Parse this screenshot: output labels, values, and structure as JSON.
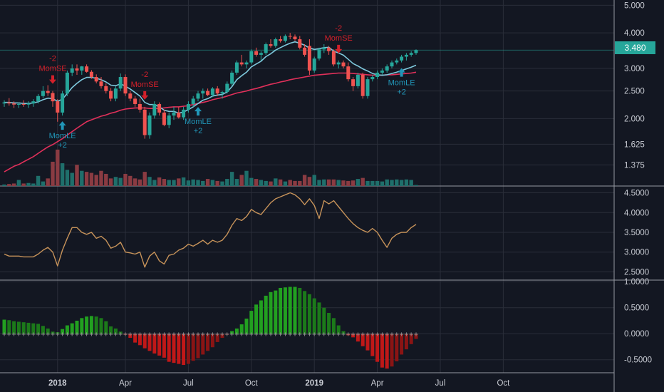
{
  "colors": {
    "background": "#131722",
    "grid": "#2a2e39",
    "candle_up": "#26a69a",
    "candle_down": "#ef5350",
    "vol_up": "#1f6f6b",
    "vol_down": "#8a3b42",
    "ema_fast": "#7ec8dc",
    "ema_slow": "#e0305a",
    "mom_line": "#c7935a",
    "hist_up": "#22a020",
    "hist_down": "#c01818",
    "signal_long": "#2196b8",
    "signal_short": "#d3202a",
    "price_tag_bg": "#26a69a"
  },
  "last_price_label": "3.480",
  "chart_data": [
    {
      "type": "candlestick",
      "scale": "log",
      "y_ticks": [
        "5.000",
        "4.000",
        "3.000",
        "2.500",
        "2.000",
        "1.625",
        "1.375"
      ],
      "y_tick_values": [
        5.0,
        4.0,
        3.0,
        2.5,
        2.0,
        1.625,
        1.375
      ],
      "ylim": [
        1.2,
        5.1
      ],
      "candles": [
        [
          2.26,
          2.32,
          2.2,
          2.28
        ],
        [
          2.28,
          2.36,
          2.22,
          2.26
        ],
        [
          2.26,
          2.3,
          2.18,
          2.24
        ],
        [
          2.24,
          2.28,
          2.18,
          2.25
        ],
        [
          2.25,
          2.32,
          2.2,
          2.24
        ],
        [
          2.24,
          2.3,
          2.18,
          2.26
        ],
        [
          2.26,
          2.34,
          2.2,
          2.3
        ],
        [
          2.3,
          2.44,
          2.26,
          2.4
        ],
        [
          2.4,
          2.6,
          2.36,
          2.5
        ],
        [
          2.5,
          2.62,
          2.4,
          2.46
        ],
        [
          2.46,
          2.5,
          2.2,
          2.3
        ],
        [
          2.3,
          2.34,
          1.95,
          2.1
        ],
        [
          2.1,
          2.5,
          2.05,
          2.45
        ],
        [
          2.45,
          2.95,
          2.4,
          2.9
        ],
        [
          2.9,
          3.1,
          2.82,
          3.0
        ],
        [
          3.0,
          3.1,
          2.85,
          2.95
        ],
        [
          2.95,
          3.06,
          2.85,
          3.05
        ],
        [
          3.05,
          3.1,
          2.9,
          2.92
        ],
        [
          2.92,
          2.96,
          2.76,
          2.8
        ],
        [
          2.8,
          2.86,
          2.66,
          2.7
        ],
        [
          2.7,
          2.8,
          2.55,
          2.6
        ],
        [
          2.6,
          2.66,
          2.45,
          2.5
        ],
        [
          2.5,
          2.56,
          2.3,
          2.35
        ],
        [
          2.35,
          2.6,
          2.3,
          2.55
        ],
        [
          2.55,
          2.88,
          2.5,
          2.8
        ],
        [
          2.8,
          2.86,
          2.4,
          2.45
        ],
        [
          2.45,
          2.5,
          2.3,
          2.35
        ],
        [
          2.35,
          2.4,
          2.2,
          2.25
        ],
        [
          2.25,
          2.35,
          2.1,
          2.15
        ],
        [
          2.15,
          2.2,
          1.7,
          1.75
        ],
        [
          1.75,
          2.1,
          1.7,
          2.05
        ],
        [
          2.05,
          2.3,
          2.0,
          2.25
        ],
        [
          2.25,
          2.28,
          2.05,
          2.1
        ],
        [
          2.1,
          2.15,
          1.88,
          1.9
        ],
        [
          1.9,
          2.1,
          1.85,
          2.05
        ],
        [
          2.05,
          2.2,
          1.98,
          2.1
        ],
        [
          2.1,
          2.2,
          2.0,
          2.02
        ],
        [
          2.02,
          2.2,
          1.98,
          2.15
        ],
        [
          2.15,
          2.3,
          2.1,
          2.25
        ],
        [
          2.25,
          2.4,
          2.2,
          2.35
        ],
        [
          2.35,
          2.5,
          2.3,
          2.45
        ],
        [
          2.45,
          2.55,
          2.35,
          2.5
        ],
        [
          2.5,
          2.55,
          2.4,
          2.42
        ],
        [
          2.42,
          2.58,
          2.38,
          2.55
        ],
        [
          2.55,
          2.6,
          2.4,
          2.45
        ],
        [
          2.45,
          2.5,
          2.35,
          2.48
        ],
        [
          2.48,
          2.7,
          2.45,
          2.65
        ],
        [
          2.65,
          2.95,
          2.6,
          2.9
        ],
        [
          2.9,
          3.2,
          2.85,
          3.15
        ],
        [
          3.15,
          3.35,
          3.05,
          3.1
        ],
        [
          3.1,
          3.2,
          3.0,
          3.15
        ],
        [
          3.15,
          3.5,
          3.1,
          3.45
        ],
        [
          3.45,
          3.55,
          3.3,
          3.35
        ],
        [
          3.35,
          3.45,
          3.2,
          3.4
        ],
        [
          3.4,
          3.7,
          3.35,
          3.65
        ],
        [
          3.65,
          3.8,
          3.55,
          3.6
        ],
        [
          3.6,
          3.85,
          3.55,
          3.8
        ],
        [
          3.8,
          3.9,
          3.7,
          3.75
        ],
        [
          3.75,
          3.95,
          3.7,
          3.9
        ],
        [
          3.9,
          4.0,
          3.8,
          3.88
        ],
        [
          3.88,
          3.95,
          3.75,
          3.8
        ],
        [
          3.8,
          3.9,
          3.5,
          3.55
        ],
        [
          3.55,
          3.65,
          3.3,
          3.35
        ],
        [
          3.6,
          3.8,
          2.85,
          2.95
        ],
        [
          2.95,
          3.3,
          2.9,
          3.25
        ],
        [
          3.25,
          3.55,
          3.2,
          3.5
        ],
        [
          3.5,
          3.65,
          3.4,
          3.55
        ],
        [
          3.55,
          3.6,
          3.35,
          3.45
        ],
        [
          3.45,
          3.5,
          3.05,
          3.1
        ],
        [
          3.1,
          3.2,
          3.0,
          3.15
        ],
        [
          3.15,
          3.2,
          3.0,
          3.05
        ],
        [
          3.05,
          3.15,
          2.7,
          2.75
        ],
        [
          2.75,
          2.8,
          2.5,
          2.6
        ],
        [
          2.6,
          2.9,
          2.55,
          2.85
        ],
        [
          2.85,
          2.9,
          2.35,
          2.4
        ],
        [
          2.4,
          2.8,
          2.35,
          2.75
        ],
        [
          2.75,
          2.85,
          2.7,
          2.8
        ],
        [
          2.8,
          2.95,
          2.75,
          2.9
        ],
        [
          2.9,
          3.0,
          2.85,
          2.95
        ],
        [
          2.95,
          3.1,
          2.9,
          3.05
        ],
        [
          3.05,
          3.2,
          3.0,
          3.15
        ],
        [
          3.15,
          3.25,
          3.1,
          3.2
        ],
        [
          3.2,
          3.35,
          3.15,
          3.3
        ],
        [
          3.3,
          3.4,
          3.2,
          3.35
        ],
        [
          3.35,
          3.45,
          3.3,
          3.4
        ],
        [
          3.4,
          3.5,
          3.35,
          3.48
        ]
      ],
      "volume_max": 100,
      "volume": [
        3,
        4,
        5,
        12,
        5,
        6,
        5,
        20,
        9,
        15,
        48,
        72,
        45,
        32,
        26,
        42,
        30,
        28,
        26,
        22,
        30,
        24,
        15,
        18,
        16,
        24,
        20,
        15,
        13,
        28,
        18,
        12,
        17,
        14,
        12,
        12,
        15,
        17,
        11,
        13,
        12,
        10,
        14,
        12,
        10,
        9,
        14,
        28,
        14,
        22,
        30,
        16,
        14,
        12,
        10,
        9,
        15,
        13,
        9,
        12,
        10,
        10,
        22,
        18,
        22,
        12,
        13,
        13,
        13,
        12,
        11,
        10,
        11,
        14,
        16,
        10,
        10,
        10,
        9,
        13,
        12,
        13,
        12,
        13,
        12,
        2
      ],
      "ema_fast": [
        2.28,
        2.28,
        2.27,
        2.27,
        2.26,
        2.26,
        2.27,
        2.29,
        2.33,
        2.36,
        2.35,
        2.3,
        2.34,
        2.45,
        2.57,
        2.66,
        2.74,
        2.79,
        2.79,
        2.77,
        2.74,
        2.69,
        2.62,
        2.61,
        2.65,
        2.6,
        2.54,
        2.47,
        2.4,
        2.28,
        2.24,
        2.24,
        2.2,
        2.14,
        2.12,
        2.12,
        2.09,
        2.11,
        2.15,
        2.2,
        2.26,
        2.32,
        2.35,
        2.4,
        2.42,
        2.43,
        2.48,
        2.59,
        2.74,
        2.83,
        2.91,
        3.04,
        3.11,
        3.18,
        3.3,
        3.38,
        3.48,
        3.55,
        3.62,
        3.68,
        3.72,
        3.68,
        3.62,
        3.54,
        3.5,
        3.52,
        3.55,
        3.56,
        3.45,
        3.4,
        3.34,
        3.23,
        3.12,
        3.06,
        2.99,
        2.94,
        2.88,
        2.85,
        2.84,
        2.85,
        2.88,
        2.91,
        2.95,
        2.99,
        3.03,
        3.08
      ],
      "ema_slow": [
        1.3,
        1.33,
        1.36,
        1.38,
        1.41,
        1.44,
        1.47,
        1.51,
        1.55,
        1.59,
        1.62,
        1.66,
        1.7,
        1.75,
        1.8,
        1.85,
        1.9,
        1.95,
        1.98,
        2.01,
        2.04,
        2.06,
        2.09,
        2.11,
        2.14,
        2.16,
        2.17,
        2.18,
        2.18,
        2.18,
        2.17,
        2.17,
        2.17,
        2.18,
        2.19,
        2.2,
        2.2,
        2.21,
        2.22,
        2.24,
        2.26,
        2.28,
        2.3,
        2.33,
        2.35,
        2.37,
        2.4,
        2.43,
        2.46,
        2.48,
        2.5,
        2.53,
        2.55,
        2.58,
        2.61,
        2.64,
        2.66,
        2.69,
        2.71,
        2.74,
        2.76,
        2.78,
        2.8,
        2.82,
        2.84,
        2.85,
        2.86,
        2.87,
        2.88,
        2.89,
        2.89,
        2.89,
        2.88,
        2.87,
        2.86,
        2.85,
        2.84,
        2.84,
        2.84,
        2.85,
        2.85,
        2.86,
        2.87,
        2.88,
        2.89,
        2.91
      ],
      "signals": [
        {
          "index": 10,
          "type": "short",
          "text": "-2",
          "name": "MomSE"
        },
        {
          "index": 12,
          "type": "long",
          "text": "+2",
          "name": "MomLE"
        },
        {
          "index": 29,
          "type": "short",
          "text": "-2",
          "name": "MomSE"
        },
        {
          "index": 40,
          "type": "long",
          "text": "+2",
          "name": "MomLE"
        },
        {
          "index": 69,
          "type": "short",
          "text": "-2",
          "name": "MomSE"
        },
        {
          "index": 82,
          "type": "long",
          "text": "+2",
          "name": "MomLE"
        }
      ]
    },
    {
      "type": "line",
      "y_ticks": [
        "4.5000",
        "4.0000",
        "3.5000",
        "3.0000",
        "2.5000"
      ],
      "y_tick_values": [
        4.5,
        4.0,
        3.5,
        3.0,
        2.5
      ],
      "ylim": [
        2.4,
        4.6
      ],
      "values": [
        2.95,
        2.9,
        2.9,
        2.9,
        2.88,
        2.88,
        2.88,
        2.95,
        3.05,
        3.12,
        3.0,
        2.65,
        3.05,
        3.35,
        3.62,
        3.62,
        3.5,
        3.45,
        3.5,
        3.35,
        3.4,
        3.3,
        3.1,
        3.15,
        3.25,
        3.0,
        2.98,
        2.95,
        3.0,
        2.62,
        2.9,
        3.0,
        2.78,
        2.7,
        2.92,
        2.95,
        3.05,
        3.1,
        3.2,
        3.15,
        3.22,
        3.3,
        3.2,
        3.3,
        3.25,
        3.3,
        3.45,
        3.68,
        3.85,
        3.8,
        3.9,
        4.08,
        4.0,
        3.95,
        4.1,
        4.25,
        4.35,
        4.4,
        4.45,
        4.5,
        4.45,
        4.35,
        4.2,
        4.35,
        4.18,
        3.85,
        4.3,
        4.22,
        4.3,
        4.15,
        4.0,
        3.85,
        3.72,
        3.62,
        3.55,
        3.5,
        3.6,
        3.5,
        3.3,
        3.12,
        3.35,
        3.45,
        3.5,
        3.5,
        3.62,
        3.7
      ]
    },
    {
      "type": "histogram",
      "y_ticks": [
        "1.0000",
        "0.5000",
        "0.0000",
        "-0.5000"
      ],
      "y_tick_values": [
        1.0,
        0.5,
        0.0,
        -0.5
      ],
      "ylim": [
        -0.75,
        1.03
      ],
      "values": [
        0.27,
        0.26,
        0.24,
        0.23,
        0.22,
        0.21,
        0.2,
        0.19,
        0.15,
        0.1,
        0.04,
        0.03,
        0.09,
        0.16,
        0.2,
        0.25,
        0.3,
        0.33,
        0.34,
        0.33,
        0.3,
        0.24,
        0.14,
        0.1,
        0.04,
        -0.02,
        -0.08,
        -0.17,
        -0.22,
        -0.28,
        -0.33,
        -0.38,
        -0.42,
        -0.46,
        -0.54,
        -0.56,
        -0.58,
        -0.6,
        -0.58,
        -0.52,
        -0.47,
        -0.4,
        -0.33,
        -0.26,
        -0.16,
        -0.08,
        -0.02,
        0.05,
        0.1,
        0.18,
        0.29,
        0.44,
        0.56,
        0.64,
        0.73,
        0.8,
        0.83,
        0.88,
        0.89,
        0.9,
        0.9,
        0.88,
        0.82,
        0.76,
        0.68,
        0.6,
        0.5,
        0.4,
        0.3,
        0.16,
        0.05,
        -0.03,
        -0.07,
        -0.15,
        -0.24,
        -0.32,
        -0.43,
        -0.54,
        -0.65,
        -0.67,
        -0.63,
        -0.53,
        -0.4,
        -0.3,
        -0.2,
        -0.1
      ],
      "zero_line_markers": "+"
    }
  ],
  "x_axis": {
    "labels": [
      "2018",
      "Apr",
      "Jul",
      "Oct",
      "2019",
      "Apr",
      "Jul",
      "Oct"
    ],
    "bold": [
      true,
      false,
      false,
      false,
      true,
      false,
      false,
      false
    ],
    "positions": [
      11,
      25,
      38,
      51,
      64,
      77,
      90,
      103
    ]
  }
}
